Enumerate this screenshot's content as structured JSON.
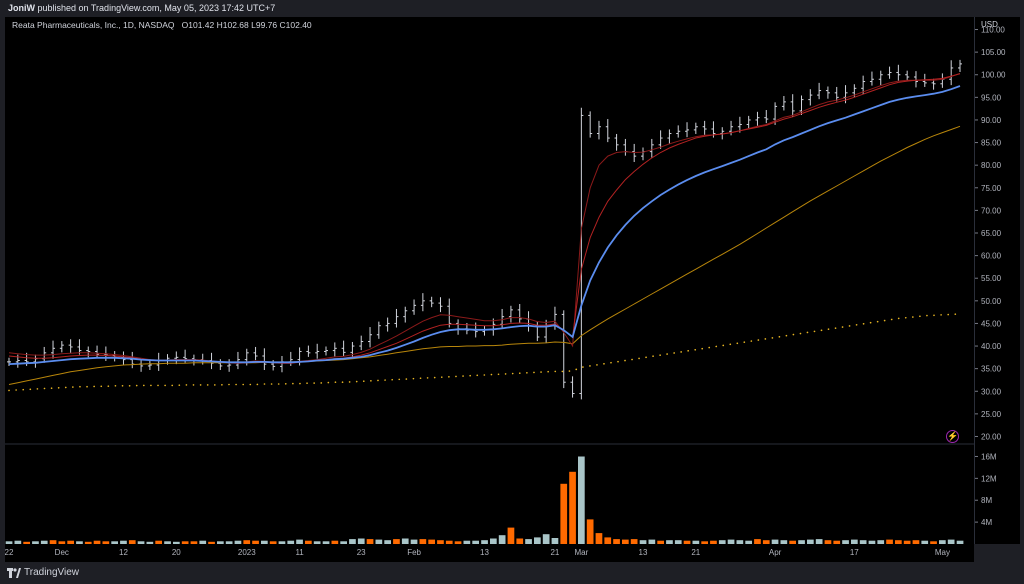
{
  "header": {
    "author": "JoniW",
    "published_text": "published on TradingView.com, May 05, 2023 17:42 UTC+7"
  },
  "symbol": {
    "name": "Reata Pharmaceuticals, Inc., 1D, NASDAQ",
    "open_label": "O",
    "open": "101.42",
    "high_label": "H",
    "high": "102.68",
    "low_label": "L",
    "low": "99.76",
    "close_label": "C",
    "close": "102.40"
  },
  "footer": {
    "brand": "TradingView"
  },
  "colors": {
    "background": "#000000",
    "bars": "#d1d4dc",
    "ema_fast_red": "#8b1a1a",
    "ema_mid_red": "#b22222",
    "ema_blue": "#5b8def",
    "sma_orange": "#b8860b",
    "dotted_yellow": "#e6b422",
    "volume_up": "#a9c5c8",
    "volume_down": "#ff6a00"
  },
  "chart_data": [
    {
      "type": "ohlc",
      "title": "",
      "currency": "USD",
      "y_ticks": [
        "110.00",
        "105.00",
        "100.00",
        "95.00",
        "90.00",
        "85.00",
        "80.00",
        "75.00",
        "70.00",
        "65.00",
        "60.00",
        "55.00",
        "50.00",
        "45.00",
        "40.00",
        "35.00",
        "30.00",
        "25.00",
        "20.00"
      ],
      "ylim": [
        19,
        111
      ],
      "x_ticks": [
        {
          "label": "22",
          "bar": 0
        },
        {
          "label": "Dec",
          "bar": 6
        },
        {
          "label": "12",
          "bar": 13
        },
        {
          "label": "20",
          "bar": 19
        },
        {
          "label": "2023",
          "bar": 27
        },
        {
          "label": "11",
          "bar": 33
        },
        {
          "label": "23",
          "bar": 40
        },
        {
          "label": "Feb",
          "bar": 46
        },
        {
          "label": "13",
          "bar": 54
        },
        {
          "label": "21",
          "bar": 62
        },
        {
          "label": "Mar",
          "bar": 65
        },
        {
          "label": "13",
          "bar": 72
        },
        {
          "label": "21",
          "bar": 78
        },
        {
          "label": "Apr",
          "bar": 87
        },
        {
          "label": "17",
          "bar": 96
        },
        {
          "label": "May",
          "bar": 106
        }
      ],
      "bars_count": 109,
      "series": [
        {
          "name": "",
          "kind": "price",
          "values": [
            36.5,
            36.8,
            36.5,
            37.2,
            38.5,
            39.5,
            40.2,
            39.8,
            39.0,
            38.8,
            38.2,
            38.0,
            37.5,
            37.0,
            36.0,
            35.6,
            35.8,
            36.8,
            37.3,
            37.5,
            37.2,
            37.0,
            36.8,
            36.2,
            35.6,
            35.8,
            37.0,
            38.5,
            37.8,
            36.0,
            35.5,
            36.5,
            37.0,
            38.8,
            38.5,
            38.8,
            39.0,
            39.5,
            38.6,
            40.0,
            41.0,
            42.5,
            44.5,
            45.0,
            46.5,
            47.8,
            49.0,
            50.0,
            49.5,
            48.8,
            45.0,
            43.8,
            43.5,
            43.2,
            43.6,
            44.8,
            46.5,
            48.0,
            46.0,
            44.5,
            42.0,
            44.5,
            47.0,
            32.0,
            29.5,
            91.0,
            87.0,
            88.5,
            86.0,
            84.5,
            83.0,
            82.0,
            83.0,
            84.5,
            86.0,
            87.0,
            87.5,
            87.8,
            88.5,
            88.0,
            87.0,
            87.5,
            88.5,
            89.0,
            90.0,
            90.5,
            90.2,
            93.0,
            94.0,
            92.0,
            94.5,
            95.5,
            96.5,
            96.0,
            95.0,
            96.0,
            97.0,
            98.5,
            99.0,
            100.0,
            100.5,
            100.0,
            99.5,
            98.5,
            98.2,
            98.0,
            99.0,
            101.5,
            102.4
          ]
        },
        {
          "name": "",
          "kind": "ema_fast",
          "values": [
            38.5,
            38.3,
            38.1,
            38.0,
            38.0,
            38.1,
            38.3,
            38.4,
            38.5,
            38.5,
            38.4,
            38.3,
            38.1,
            37.9,
            37.6,
            37.3,
            37.0,
            36.9,
            36.9,
            37.0,
            37.0,
            37.0,
            36.9,
            36.7,
            36.5,
            36.3,
            36.3,
            36.5,
            36.7,
            36.6,
            36.4,
            36.3,
            36.3,
            36.6,
            36.8,
            37.0,
            37.3,
            37.6,
            37.7,
            38.1,
            38.6,
            39.3,
            40.3,
            41.2,
            42.2,
            43.3,
            44.4,
            45.5,
            46.3,
            46.9,
            46.8,
            46.5,
            46.2,
            45.9,
            45.6,
            45.6,
            45.8,
            46.3,
            46.3,
            46.0,
            45.4,
            45.2,
            45.5,
            43.0,
            40.0,
            66.0,
            75.0,
            80.0,
            82.0,
            82.8,
            83.0,
            82.8,
            82.9,
            83.4,
            84.0,
            84.7,
            85.3,
            85.8,
            86.3,
            86.6,
            86.7,
            86.9,
            87.2,
            87.6,
            88.1,
            88.6,
            89.0,
            89.8,
            90.6,
            91.0,
            91.8,
            92.6,
            93.4,
            94.0,
            94.4,
            94.9,
            95.5,
            96.2,
            96.9,
            97.6,
            98.2,
            98.6,
            98.8,
            98.8,
            98.8,
            98.8,
            99.0,
            99.6,
            100.3
          ]
        },
        {
          "name": "",
          "kind": "ema_mid",
          "values": [
            37.8,
            37.6,
            37.4,
            37.3,
            37.3,
            37.4,
            37.6,
            37.8,
            37.9,
            38.0,
            38.0,
            37.9,
            37.8,
            37.6,
            37.4,
            37.1,
            36.9,
            36.8,
            36.8,
            36.8,
            36.8,
            36.8,
            36.7,
            36.6,
            36.4,
            36.3,
            36.2,
            36.3,
            36.4,
            36.4,
            36.3,
            36.2,
            36.2,
            36.4,
            36.6,
            36.8,
            37.0,
            37.2,
            37.3,
            37.6,
            38.0,
            38.5,
            39.2,
            39.9,
            40.6,
            41.5,
            42.4,
            43.3,
            44.0,
            44.6,
            44.8,
            44.8,
            44.7,
            44.6,
            44.5,
            44.5,
            44.7,
            45.0,
            45.1,
            45.0,
            44.6,
            44.6,
            44.9,
            43.5,
            42.0,
            57.0,
            64.0,
            68.5,
            72.0,
            74.5,
            76.8,
            78.6,
            80.2,
            81.6,
            82.8,
            83.8,
            84.6,
            85.3,
            86.0,
            86.4,
            86.7,
            86.9,
            87.2,
            87.6,
            88.0,
            88.4,
            88.8,
            89.5,
            90.2,
            90.7,
            91.4,
            92.1,
            92.8,
            93.4,
            93.9,
            94.4,
            95.0,
            95.7,
            96.4,
            97.1,
            97.8,
            98.3,
            98.6,
            98.8,
            98.9,
            99.0,
            99.2,
            99.7,
            100.2
          ]
        },
        {
          "name": "",
          "kind": "ema_blue",
          "values": [
            36.0,
            36.1,
            36.2,
            36.3,
            36.5,
            36.7,
            36.9,
            37.1,
            37.2,
            37.3,
            37.4,
            37.4,
            37.4,
            37.3,
            37.2,
            37.0,
            36.9,
            36.8,
            36.8,
            36.8,
            36.8,
            36.8,
            36.7,
            36.6,
            36.5,
            36.4,
            36.4,
            36.4,
            36.5,
            36.5,
            36.4,
            36.4,
            36.4,
            36.5,
            36.6,
            36.8,
            36.9,
            37.1,
            37.2,
            37.4,
            37.6,
            38.0,
            38.5,
            39.0,
            39.6,
            40.3,
            41.0,
            41.8,
            42.5,
            43.1,
            43.5,
            43.7,
            43.7,
            43.6,
            43.6,
            43.7,
            43.9,
            44.2,
            44.4,
            44.5,
            44.3,
            44.3,
            44.6,
            43.5,
            42.0,
            49.0,
            54.5,
            58.5,
            61.8,
            64.5,
            66.8,
            68.8,
            70.5,
            72.0,
            73.4,
            74.6,
            75.7,
            76.7,
            77.6,
            78.4,
            79.1,
            79.8,
            80.5,
            81.2,
            82.0,
            82.8,
            83.5,
            84.6,
            85.5,
            86.2,
            87.0,
            87.8,
            88.6,
            89.3,
            89.9,
            90.5,
            91.2,
            91.9,
            92.6,
            93.3,
            94.0,
            94.5,
            94.9,
            95.2,
            95.5,
            95.8,
            96.2,
            96.8,
            97.5
          ]
        },
        {
          "name": "",
          "kind": "sma",
          "values": [
            31.5,
            31.9,
            32.3,
            32.7,
            33.1,
            33.5,
            33.9,
            34.3,
            34.6,
            34.9,
            35.2,
            35.4,
            35.6,
            35.8,
            35.9,
            36.0,
            36.1,
            36.1,
            36.2,
            36.2,
            36.2,
            36.3,
            36.3,
            36.3,
            36.3,
            36.3,
            36.3,
            36.3,
            36.3,
            36.4,
            36.4,
            36.4,
            36.5,
            36.5,
            36.6,
            36.7,
            36.8,
            36.9,
            37.0,
            37.2,
            37.4,
            37.6,
            37.9,
            38.2,
            38.5,
            38.8,
            39.1,
            39.4,
            39.6,
            39.8,
            39.9,
            39.9,
            40.0,
            40.0,
            40.1,
            40.1,
            40.2,
            40.4,
            40.5,
            40.6,
            40.6,
            40.7,
            40.9,
            40.8,
            40.5,
            42.3,
            43.6,
            44.8,
            46.0,
            47.1,
            48.2,
            49.3,
            50.4,
            51.5,
            52.6,
            53.7,
            54.8,
            55.9,
            57.0,
            58.1,
            59.2,
            60.3,
            61.4,
            62.5,
            63.7,
            64.9,
            66.1,
            67.3,
            68.5,
            69.7,
            70.9,
            72.1,
            73.2,
            74.3,
            75.4,
            76.5,
            77.6,
            78.7,
            79.8,
            80.9,
            81.9,
            82.9,
            83.9,
            84.8,
            85.7,
            86.5,
            87.2,
            87.9,
            88.6
          ]
        },
        {
          "name": "",
          "kind": "dotted",
          "values": [
            30.2,
            30.3,
            30.4,
            30.5,
            30.6,
            30.7,
            30.8,
            30.9,
            31.0,
            31.0,
            31.1,
            31.1,
            31.2,
            31.2,
            31.2,
            31.3,
            31.3,
            31.3,
            31.3,
            31.3,
            31.4,
            31.4,
            31.4,
            31.4,
            31.4,
            31.5,
            31.5,
            31.5,
            31.5,
            31.6,
            31.6,
            31.6,
            31.7,
            31.7,
            31.8,
            31.8,
            31.9,
            32.0,
            32.0,
            32.1,
            32.2,
            32.3,
            32.4,
            32.5,
            32.6,
            32.7,
            32.8,
            32.9,
            33.0,
            33.1,
            33.2,
            33.3,
            33.4,
            33.5,
            33.6,
            33.7,
            33.8,
            33.9,
            34.0,
            34.1,
            34.2,
            34.3,
            34.4,
            34.4,
            34.5,
            35.3,
            35.6,
            35.9,
            36.2,
            36.5,
            36.8,
            37.1,
            37.4,
            37.7,
            38.0,
            38.3,
            38.6,
            38.9,
            39.2,
            39.5,
            39.8,
            40.1,
            40.4,
            40.7,
            41.0,
            41.3,
            41.6,
            41.9,
            42.2,
            42.5,
            42.8,
            43.1,
            43.4,
            43.7,
            44.0,
            44.3,
            44.6,
            44.9,
            45.2,
            45.5,
            45.8,
            46.1,
            46.3,
            46.5,
            46.7,
            46.8,
            46.9,
            47.0,
            47.1
          ]
        }
      ]
    },
    {
      "type": "bar",
      "title": "",
      "y_ticks": [
        "16M",
        "12M",
        "8M",
        "4M"
      ],
      "ylim": [
        0,
        17
      ],
      "series": [
        {
          "name": "",
          "values": [
            0.5,
            0.6,
            0.4,
            0.5,
            0.6,
            0.7,
            0.5,
            0.6,
            0.5,
            0.4,
            0.6,
            0.5,
            0.5,
            0.6,
            0.7,
            0.5,
            0.4,
            0.6,
            0.5,
            0.4,
            0.5,
            0.5,
            0.6,
            0.4,
            0.5,
            0.5,
            0.6,
            0.7,
            0.6,
            0.6,
            0.5,
            0.5,
            0.6,
            0.8,
            0.6,
            0.5,
            0.5,
            0.6,
            0.5,
            0.9,
            1.0,
            0.9,
            0.8,
            0.7,
            0.9,
            1.0,
            0.8,
            0.9,
            0.8,
            0.7,
            0.6,
            0.5,
            0.6,
            0.6,
            0.7,
            1.0,
            1.6,
            3.0,
            1.0,
            0.9,
            1.2,
            1.8,
            1.1,
            11.0,
            13.2,
            16.0,
            4.5,
            2.0,
            1.2,
            0.9,
            0.8,
            0.9,
            0.7,
            0.8,
            0.6,
            0.7,
            0.7,
            0.6,
            0.6,
            0.5,
            0.6,
            0.7,
            0.8,
            0.7,
            0.6,
            0.9,
            0.7,
            0.8,
            0.7,
            0.6,
            0.7,
            0.8,
            0.9,
            0.7,
            0.6,
            0.7,
            0.8,
            0.7,
            0.6,
            0.7,
            0.8,
            0.7,
            0.6,
            0.7,
            0.6,
            0.5,
            0.7,
            0.8,
            0.6
          ]
        },
        {
          "name": "",
          "kind": "direction",
          "values": [
            1,
            1,
            0,
            1,
            1,
            0,
            0,
            0,
            1,
            0,
            0,
            0,
            1,
            1,
            0,
            1,
            1,
            0,
            1,
            1,
            0,
            0,
            1,
            0,
            1,
            1,
            1,
            0,
            0,
            1,
            0,
            1,
            1,
            1,
            0,
            1,
            1,
            0,
            1,
            1,
            1,
            0,
            1,
            1,
            0,
            1,
            1,
            0,
            0,
            0,
            0,
            0,
            1,
            1,
            1,
            1,
            1,
            0,
            0,
            1,
            1,
            1,
            1,
            0,
            0,
            1,
            0,
            0,
            0,
            0,
            0,
            0,
            1,
            1,
            0,
            1,
            1,
            0,
            1,
            0,
            0,
            1,
            1,
            1,
            1,
            0,
            0,
            1,
            1,
            0,
            1,
            1,
            1,
            0,
            0,
            1,
            1,
            1,
            1,
            1,
            0,
            0,
            0,
            0,
            1,
            0,
            1,
            1,
            1
          ]
        }
      ]
    }
  ]
}
